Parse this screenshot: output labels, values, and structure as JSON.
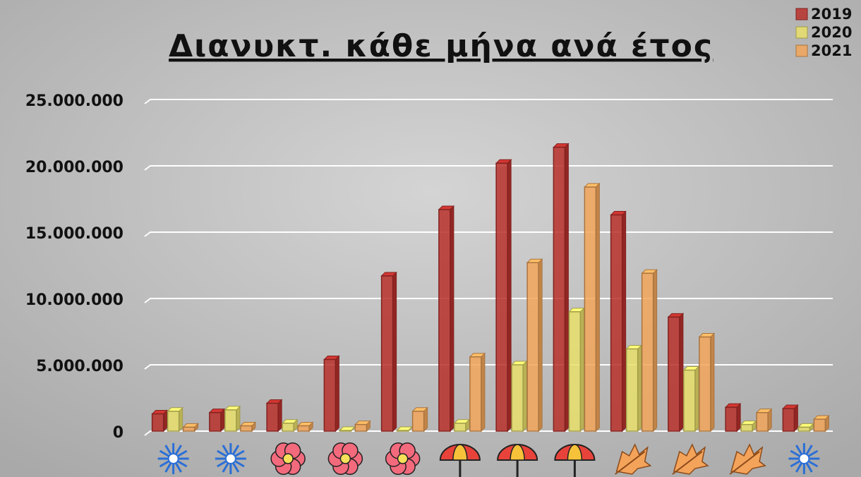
{
  "chart_data": {
    "type": "bar3d",
    "title": "Διανυκτ. κάθε μήνα ανά έτος",
    "categories": [
      null,
      null,
      null,
      null,
      null,
      null,
      null,
      null,
      null,
      null,
      null,
      null
    ],
    "series": [
      {
        "name": "2019",
        "color": "#b8302c",
        "values": [
          1300000,
          1400000,
          2100000,
          5400000,
          11700000,
          16700000,
          20200000,
          21400000,
          16300000,
          8600000,
          1800000,
          1700000
        ]
      },
      {
        "name": "2020",
        "color": "#e8df6a",
        "values": [
          1500000,
          1600000,
          600000,
          50000,
          50000,
          600000,
          5000000,
          9000000,
          6200000,
          4600000,
          500000,
          300000
        ]
      },
      {
        "name": "2021",
        "color": "#f2a65a",
        "values": [
          300000,
          400000,
          400000,
          500000,
          1500000,
          5600000,
          12700000,
          18400000,
          11900000,
          7100000,
          1400000,
          900000
        ]
      }
    ],
    "ylim": [
      0,
      25000000
    ],
    "yticks": [
      0,
      {
        "value": 5000000,
        "label": "5.000.000"
      },
      {
        "value": 10000000,
        "label": "10.000.000"
      },
      {
        "value": 15000000,
        "label": "15.000.000"
      },
      {
        "value": 20000000,
        "label": "20.000.000"
      },
      {
        "value": 25000000,
        "label": "25.000.000"
      }
    ],
    "grid": true,
    "legend": "top-right"
  }
}
